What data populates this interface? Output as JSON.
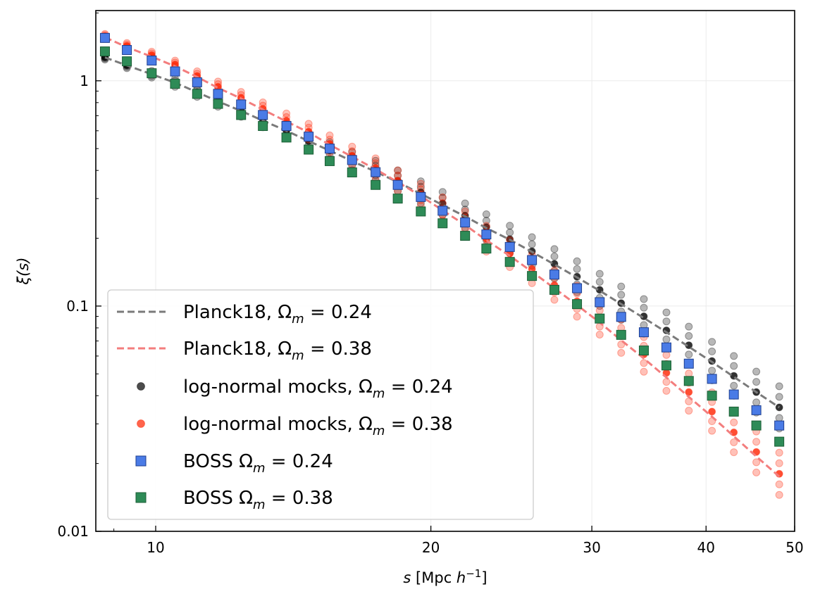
{
  "chart_data": {
    "type": "scatter",
    "xscale": "log",
    "yscale": "log",
    "xlim": [
      8.6,
      50
    ],
    "ylim": [
      0.01,
      2.05
    ],
    "xticks": [
      10,
      20,
      30,
      40,
      50
    ],
    "xtick_labels": [
      "10",
      "20",
      "30",
      "40",
      "50"
    ],
    "yticks": [
      0.01,
      0.1,
      1
    ],
    "ytick_labels": [
      "0.01",
      "0.1",
      "1"
    ],
    "xlabel": "s [Mpc h⁻¹]",
    "ylabel": "ξ(s)",
    "grid": true,
    "legend_position": "lower-left",
    "x": [
      8.8,
      9.3,
      9.9,
      10.5,
      11.1,
      11.7,
      12.4,
      13.1,
      13.9,
      14.7,
      15.5,
      16.4,
      17.4,
      18.4,
      19.5,
      20.6,
      21.8,
      23.0,
      24.4,
      25.8,
      27.3,
      28.9,
      30.6,
      32.3,
      34.2,
      36.2,
      38.3,
      40.6,
      42.9,
      45.4,
      48.1
    ],
    "series": [
      {
        "name": "Planck18, Ωm = 0.24",
        "kind": "dashed-line",
        "color": "#7a7a7a",
        "values": [
          1.27,
          1.17,
          1.07,
          0.98,
          0.89,
          0.81,
          0.735,
          0.665,
          0.6,
          0.54,
          0.49,
          0.44,
          0.395,
          0.355,
          0.315,
          0.281,
          0.25,
          0.222,
          0.197,
          0.174,
          0.153,
          0.134,
          0.117,
          0.102,
          0.0885,
          0.0765,
          0.066,
          0.0565,
          0.0485,
          0.0415,
          0.0355
        ]
      },
      {
        "name": "Planck18, Ωm = 0.38",
        "kind": "dashed-line",
        "color": "#f37d7d",
        "values": [
          1.56,
          1.41,
          1.28,
          1.16,
          1.04,
          0.93,
          0.835,
          0.745,
          0.66,
          0.59,
          0.52,
          0.46,
          0.405,
          0.355,
          0.308,
          0.266,
          0.229,
          0.196,
          0.167,
          0.142,
          0.12,
          0.101,
          0.0845,
          0.0705,
          0.0585,
          0.0482,
          0.0395,
          0.0323,
          0.0264,
          0.0215,
          0.0175
        ]
      },
      {
        "name": "log-normal mocks, Ωm = 0.24",
        "kind": "mock-points",
        "color": "#000000",
        "values": [
          1.27,
          1.17,
          1.07,
          0.98,
          0.89,
          0.81,
          0.735,
          0.665,
          0.6,
          0.54,
          0.49,
          0.44,
          0.4,
          0.36,
          0.32,
          0.285,
          0.252,
          0.224,
          0.198,
          0.175,
          0.154,
          0.135,
          0.118,
          0.103,
          0.09,
          0.078,
          0.067,
          0.057,
          0.049,
          0.0415,
          0.0355
        ]
      },
      {
        "name": "log-normal mocks, Ωm = 0.38",
        "kind": "mock-points",
        "color": "#ff2200",
        "values": [
          1.58,
          1.43,
          1.3,
          1.18,
          1.05,
          0.94,
          0.84,
          0.75,
          0.665,
          0.595,
          0.525,
          0.465,
          0.41,
          0.36,
          0.312,
          0.27,
          0.232,
          0.199,
          0.171,
          0.146,
          0.124,
          0.105,
          0.088,
          0.0735,
          0.061,
          0.0505,
          0.0415,
          0.034,
          0.0275,
          0.0225,
          0.018
        ]
      },
      {
        "name": "BOSS Ωm = 0.24",
        "kind": "square-markers",
        "color": "#4a7be6",
        "values": [
          1.55,
          1.37,
          1.23,
          1.1,
          0.985,
          0.875,
          0.785,
          0.705,
          0.63,
          0.565,
          0.5,
          0.445,
          0.393,
          0.345,
          0.305,
          0.265,
          0.235,
          0.208,
          0.183,
          0.16,
          0.138,
          0.12,
          0.104,
          0.0895,
          0.0765,
          0.0655,
          0.0555,
          0.0475,
          0.0405,
          0.0345,
          0.0295
        ]
      },
      {
        "name": "BOSS Ωm = 0.38",
        "kind": "square-markers",
        "color": "#2e8b57",
        "values": [
          1.35,
          1.22,
          1.08,
          0.97,
          0.875,
          0.79,
          0.705,
          0.63,
          0.56,
          0.495,
          0.44,
          0.392,
          0.345,
          0.3,
          0.263,
          0.233,
          0.205,
          0.18,
          0.157,
          0.136,
          0.118,
          0.102,
          0.088,
          0.0745,
          0.0635,
          0.0545,
          0.0465,
          0.04,
          0.034,
          0.0295,
          0.025
        ]
      }
    ],
    "legend": [
      {
        "label_main": "Planck18, Ω",
        "sub": "m",
        "label_rest": " = 0.24"
      },
      {
        "label_main": "Planck18, Ω",
        "sub": "m",
        "label_rest": " = 0.38"
      },
      {
        "label_main": "log-normal mocks, Ω",
        "sub": "m",
        "label_rest": " = 0.24"
      },
      {
        "label_main": "log-normal mocks, Ω",
        "sub": "m",
        "label_rest": " = 0.38"
      },
      {
        "label_main": "BOSS Ω",
        "sub": "m",
        "label_rest": " = 0.24"
      },
      {
        "label_main": "BOSS Ω",
        "sub": "m",
        "label_rest": " = 0.38"
      }
    ],
    "axis_text": {
      "xlabel_main": "s",
      "xlabel_unit": " [Mpc ",
      "xlabel_h": "h",
      "xlabel_exp": "−1",
      "xlabel_close": "]",
      "ylabel_main": "ξ(s)"
    }
  }
}
